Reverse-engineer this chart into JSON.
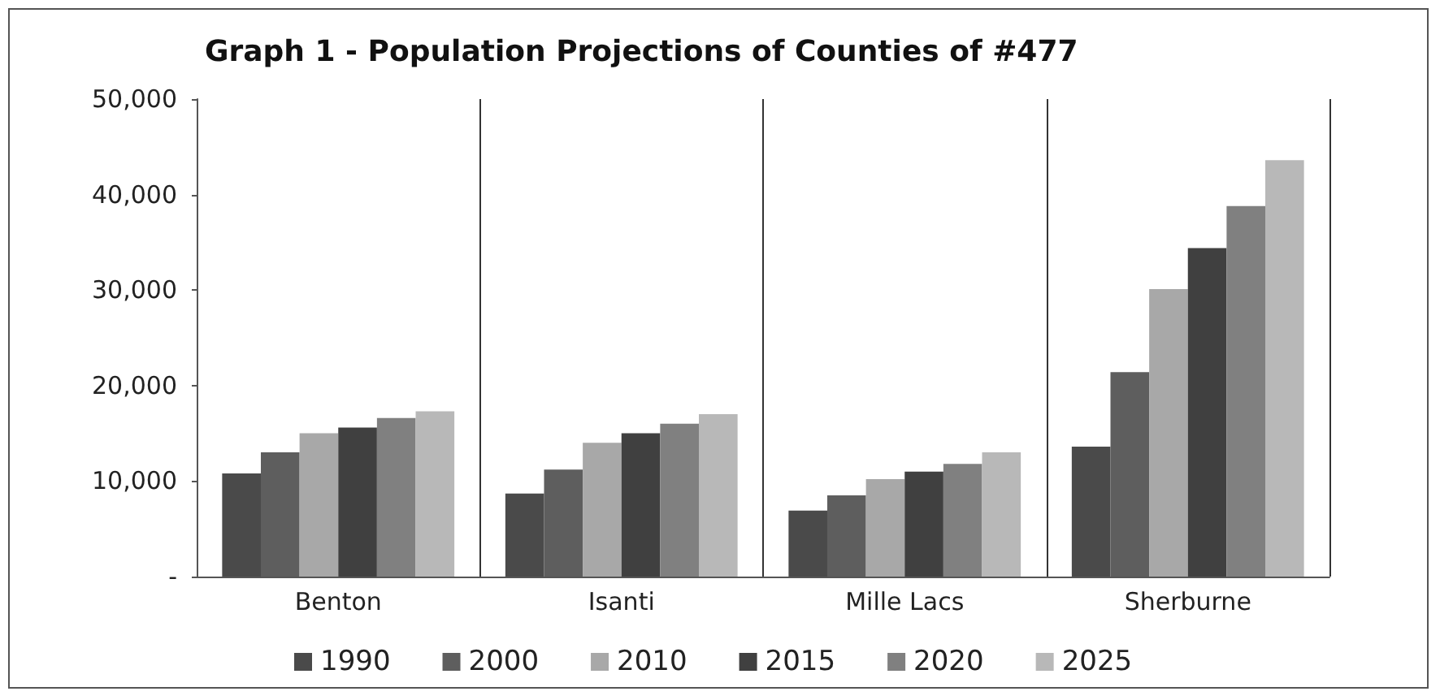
{
  "chart_data": {
    "type": "bar",
    "title": "Graph 1 - Population Projections of Counties of #477",
    "categories": [
      "Benton",
      "Isanti",
      "Mille Lacs",
      "Sherburne"
    ],
    "series": [
      {
        "name": "1990",
        "color": "#4a4a4a",
        "values": [
          10800,
          8700,
          6900,
          13600
        ]
      },
      {
        "name": "2000",
        "color": "#5e5e5e",
        "values": [
          13000,
          11200,
          8500,
          21400
        ]
      },
      {
        "name": "2010",
        "color": "#a8a8a8",
        "values": [
          15000,
          14000,
          10200,
          30100
        ]
      },
      {
        "name": "2015",
        "color": "#404040",
        "values": [
          15600,
          15000,
          11000,
          34400
        ]
      },
      {
        "name": "2020",
        "color": "#808080",
        "values": [
          16600,
          16000,
          11800,
          38800
        ]
      },
      {
        "name": "2025",
        "color": "#b8b8b8",
        "values": [
          17300,
          17000,
          13000,
          43600
        ]
      }
    ],
    "ylim": [
      0,
      50000
    ],
    "yticks": [
      {
        "value": 0,
        "label": "-"
      },
      {
        "value": 10000,
        "label": "10,000"
      },
      {
        "value": 20000,
        "label": "20,000"
      },
      {
        "value": 30000,
        "label": "30,000"
      },
      {
        "value": 40000,
        "label": "40,000"
      },
      {
        "value": 50000,
        "label": "50,000"
      }
    ],
    "grid": "x",
    "legend": "bottom"
  }
}
